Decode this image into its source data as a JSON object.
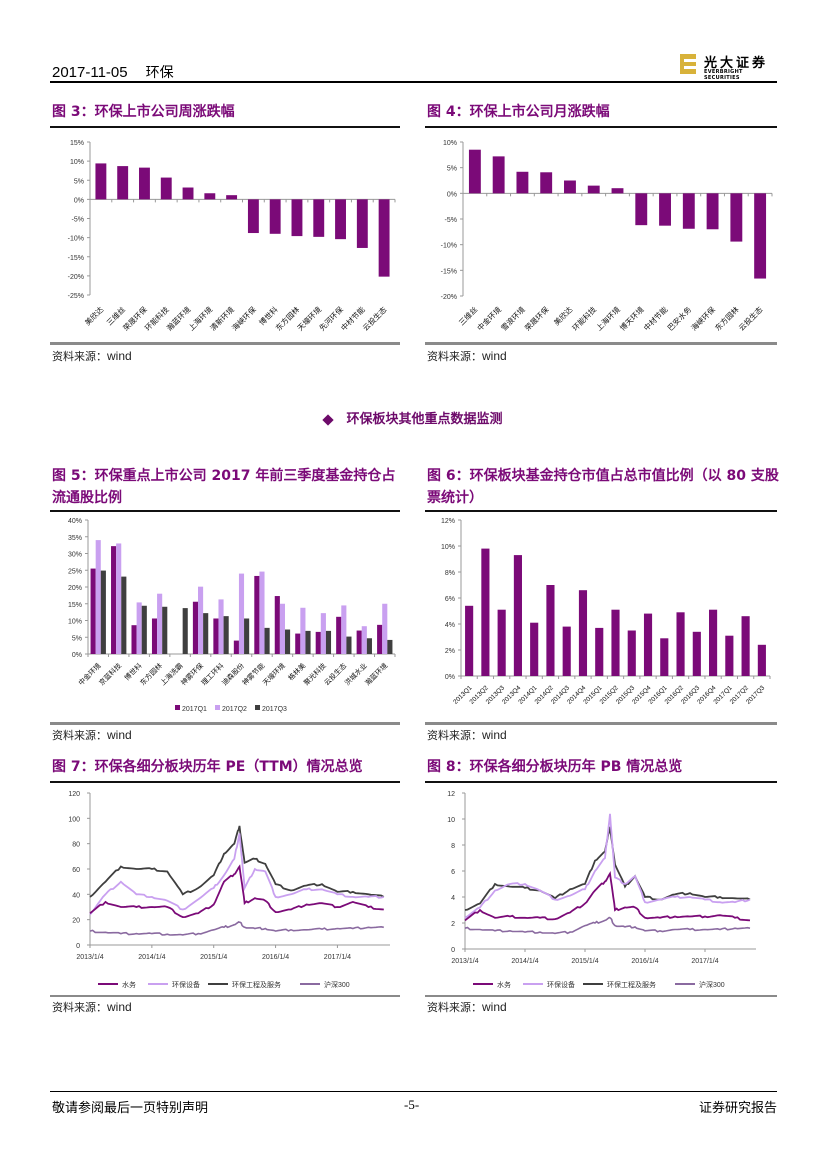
{
  "header": {
    "date": "2017-11-05",
    "topic": "环保",
    "logo_cn": "光大证券",
    "logo_en": "EVERBRIGHT SECURITIES"
  },
  "section_title": "环保板块其他重点数据监测",
  "source_label": "资料来源：",
  "source_value": "wind",
  "footer": {
    "left": "敬请参阅最后一页特别声明",
    "center": "-5-",
    "right": "证券研究报告"
  },
  "colors": {
    "primary": "#7b0a78",
    "light": "#c9a0f0",
    "dark": "#3f3f3f",
    "hs300": "#8a6aa0"
  },
  "figures": {
    "fig3": {
      "title": "图 3：环保上市公司周涨跌幅"
    },
    "fig4": {
      "title": "图 4：环保上市公司月涨跌幅"
    },
    "fig5": {
      "title_line1": "图 5：环保重点上市公司 2017 年前三季度基金持仓占",
      "title_line2": "流通股比例"
    },
    "fig6": {
      "title_line1": "图 6：环保板块基金持仓市值占总市值比例（以 80 支股",
      "title_line2": "票统计）"
    },
    "fig7": {
      "title": "图 7：环保各细分板块历年 PE（TTM）情况总览"
    },
    "fig8": {
      "title": "图 8：环保各细分板块历年 PB 情况总览"
    }
  },
  "chart_data": [
    {
      "id": "fig3",
      "type": "bar",
      "title": "环保上市公司周涨跌幅",
      "categories": [
        "美欣达",
        "三维丝",
        "荣晟环保",
        "环能科技",
        "瀚蓝环境",
        "上海环境",
        "清新环境",
        "海峡环保",
        "博世科",
        "东方园林",
        "天壕环境",
        "先河环保",
        "中材节能",
        "云投生态"
      ],
      "values": [
        9.4,
        8.7,
        8.3,
        5.7,
        3.1,
        1.6,
        1.1,
        -8.8,
        -9.0,
        -9.6,
        -9.8,
        -10.4,
        -12.7,
        -20.2
      ],
      "unit": "%",
      "ylim": [
        -25,
        15
      ],
      "yticks": [
        15,
        10,
        5,
        0,
        -5,
        -10,
        -15,
        -20,
        -25
      ],
      "grid": false
    },
    {
      "id": "fig4",
      "type": "bar",
      "title": "环保上市公司月涨跌幅",
      "categories": [
        "三维丝",
        "中金环境",
        "雪浪环境",
        "荣晟环保",
        "美欣达",
        "环能科技",
        "上海环境",
        "博天环境",
        "中材节能",
        "巴安水务",
        "海峡环保",
        "东方园林",
        "云投生态"
      ],
      "values": [
        8.5,
        7.2,
        4.2,
        4.1,
        2.5,
        1.5,
        1.0,
        -6.2,
        -6.3,
        -6.9,
        -7.0,
        -9.4,
        -16.6
      ],
      "unit": "%",
      "ylim": [
        -20,
        10
      ],
      "yticks": [
        10,
        5,
        0,
        -5,
        -10,
        -15,
        -20
      ],
      "grid": false
    },
    {
      "id": "fig5",
      "type": "bar",
      "title": "环保重点上市公司2017年前三季度基金持仓占流通股比例",
      "categories": [
        "中金环境",
        "京蓝科技",
        "博世科",
        "东方园林",
        "上海洗霸",
        "神雾环保",
        "理工环科",
        "迪森股份",
        "神雾节能",
        "天壕环境",
        "格林美",
        "聚光科技",
        "云投生态",
        "洪城水业",
        "瀚蓝环境"
      ],
      "series": [
        {
          "name": "2017Q1",
          "values": [
            25.5,
            32.2,
            8.6,
            10.6,
            0,
            15.6,
            10.6,
            4.0,
            23.3,
            17.3,
            6.1,
            6.6,
            11.1,
            7.0,
            8.7
          ]
        },
        {
          "name": "2017Q2",
          "values": [
            34.0,
            33.0,
            15.4,
            18.0,
            0,
            20.1,
            16.3,
            24.0,
            24.6,
            15.0,
            13.8,
            12.2,
            14.5,
            8.3,
            15.0
          ]
        },
        {
          "name": "2017Q3",
          "values": [
            24.9,
            23.1,
            14.4,
            14.1,
            13.7,
            12.2,
            11.3,
            10.6,
            7.8,
            7.3,
            6.9,
            6.9,
            5.2,
            4.7,
            4.2
          ]
        }
      ],
      "unit": "%",
      "ylim": [
        0,
        40
      ],
      "yticks": [
        40,
        35,
        30,
        25,
        20,
        15,
        10,
        5,
        0
      ],
      "legend": "bottom"
    },
    {
      "id": "fig6",
      "type": "bar",
      "title": "环保板块基金持仓市值占总市值比例（以80支股票统计）",
      "categories": [
        "2013Q1",
        "2013Q2",
        "2013Q3",
        "2013Q4",
        "2014Q1",
        "2014Q2",
        "2014Q3",
        "2014Q4",
        "2015Q1",
        "2015Q2",
        "2015Q3",
        "2015Q4",
        "2016Q1",
        "2016Q2",
        "2016Q3",
        "2016Q4",
        "2017Q1",
        "2017Q2",
        "2017Q3"
      ],
      "values": [
        5.4,
        9.8,
        5.1,
        9.3,
        4.1,
        7.0,
        3.8,
        6.6,
        3.7,
        5.1,
        3.5,
        4.8,
        2.9,
        4.9,
        3.4,
        5.1,
        3.1,
        4.6,
        2.4
      ],
      "unit": "%",
      "ylim": [
        0,
        12
      ],
      "yticks": [
        12,
        10,
        8,
        6,
        4,
        2,
        0
      ]
    },
    {
      "id": "fig7",
      "type": "line",
      "title": "环保各细分板块历年PE(TTM)情况总览",
      "x_ticks": [
        "2013/1/4",
        "2014/1/4",
        "2015/1/4",
        "2016/1/4",
        "2017/1/4"
      ],
      "x": [
        "2013/1",
        "2013/4",
        "2013/7",
        "2013/10",
        "2014/1",
        "2014/4",
        "2014/7",
        "2014/10",
        "2015/1",
        "2015/3",
        "2015/5",
        "2015/6",
        "2015/7",
        "2015/9",
        "2015/11",
        "2016/1",
        "2016/4",
        "2016/7",
        "2016/10",
        "2017/1",
        "2017/4",
        "2017/7",
        "2017/10"
      ],
      "series": [
        {
          "name": "水务",
          "values": [
            25,
            34,
            30,
            30,
            30,
            30,
            22,
            25,
            32,
            50,
            56,
            62,
            33,
            37,
            35,
            26,
            28,
            32,
            33,
            30,
            34,
            30,
            28
          ]
        },
        {
          "name": "环保设备",
          "values": [
            24,
            40,
            50,
            40,
            38,
            35,
            28,
            36,
            45,
            55,
            68,
            88,
            45,
            60,
            58,
            38,
            40,
            44,
            44,
            40,
            38,
            38,
            38
          ]
        },
        {
          "name": "环保工程及服务",
          "values": [
            38,
            50,
            62,
            60,
            60,
            58,
            40,
            45,
            55,
            72,
            80,
            94,
            65,
            68,
            64,
            48,
            43,
            47,
            48,
            42,
            42,
            40,
            38
          ]
        },
        {
          "name": "沪深300",
          "values": [
            11,
            10,
            9,
            9,
            9,
            8.5,
            8,
            9,
            12,
            14,
            16,
            18,
            14,
            13,
            13,
            11,
            12,
            12,
            12.5,
            13,
            13,
            14,
            14
          ]
        }
      ],
      "ylim": [
        0,
        120
      ],
      "yticks": [
        120,
        100,
        80,
        60,
        40,
        20,
        0
      ],
      "legend": "bottom"
    },
    {
      "id": "fig8",
      "type": "line",
      "title": "环保各细分板块历年PB情况总览",
      "x_ticks": [
        "2013/1/4",
        "2014/1/4",
        "2015/1/4",
        "2016/1/4",
        "2017/1/4"
      ],
      "x": [
        "2013/1",
        "2013/4",
        "2013/7",
        "2013/10",
        "2014/1",
        "2014/4",
        "2014/7",
        "2014/10",
        "2015/1",
        "2015/3",
        "2015/5",
        "2015/6",
        "2015/7",
        "2015/9",
        "2015/11",
        "2016/1",
        "2016/4",
        "2016/7",
        "2016/10",
        "2017/1",
        "2017/4",
        "2017/7",
        "2017/10"
      ],
      "series": [
        {
          "name": "水务",
          "values": [
            2.2,
            3.0,
            2.4,
            2.5,
            2.4,
            2.4,
            2.3,
            2.8,
            3.5,
            4.5,
            5.2,
            5.8,
            3.0,
            3.2,
            3.2,
            2.4,
            2.4,
            2.5,
            2.5,
            2.5,
            2.6,
            2.4,
            2.2
          ]
        },
        {
          "name": "环保设备",
          "values": [
            2.4,
            3.2,
            4.5,
            5.0,
            5.0,
            4.5,
            3.8,
            4.1,
            4.6,
            6.0,
            7.0,
            10.4,
            5.5,
            5.0,
            5.6,
            3.6,
            3.8,
            4.0,
            4.0,
            3.8,
            3.6,
            3.6,
            3.8
          ]
        },
        {
          "name": "环保工程及服务",
          "values": [
            3.0,
            3.5,
            5.0,
            4.8,
            4.7,
            4.5,
            3.9,
            4.6,
            5.0,
            6.8,
            7.5,
            9.4,
            6.5,
            4.8,
            5.6,
            4.0,
            3.8,
            4.2,
            4.3,
            4.0,
            4.0,
            3.9,
            3.8
          ]
        },
        {
          "name": "沪深300",
          "values": [
            1.6,
            1.5,
            1.4,
            1.4,
            1.3,
            1.3,
            1.2,
            1.3,
            1.8,
            2.0,
            2.2,
            2.4,
            1.8,
            1.7,
            1.7,
            1.4,
            1.4,
            1.5,
            1.5,
            1.5,
            1.5,
            1.6,
            1.6
          ]
        }
      ],
      "ylim": [
        0,
        12
      ],
      "yticks": [
        12,
        10,
        8,
        6,
        4,
        2,
        0
      ],
      "legend": "bottom"
    }
  ]
}
